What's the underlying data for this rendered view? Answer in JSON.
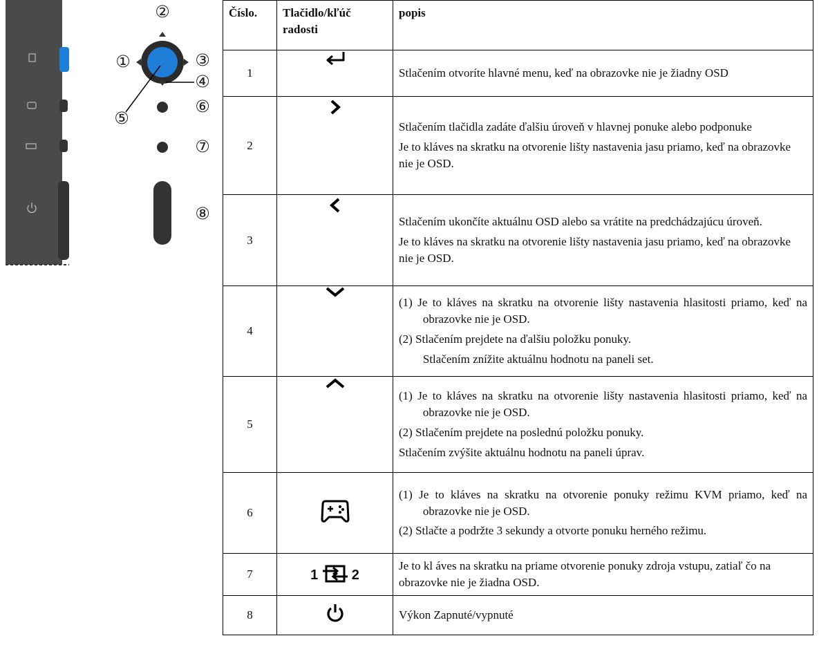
{
  "diagram": {
    "labels": [
      "①",
      "②",
      "③",
      "④",
      "⑤",
      "⑥",
      "⑦",
      "⑧"
    ]
  },
  "table": {
    "headers": [
      "Číslo.",
      "Tlačidlo/kľúč radosti",
      "popis"
    ],
    "rows": [
      {
        "number": "1",
        "description": [
          "Stlačením otvoríte hlavné menu, keď na obrazovke nie je žiadny OSD"
        ]
      },
      {
        "number": "2",
        "description": [
          "Stlačením tlačidla zadáte ďalšiu úroveň v hlavnej ponuke alebo podponuke",
          "Je to kláves na skratku na otvorenie lišty nastavenia jasu priamo, keď na obrazovke nie je OSD."
        ]
      },
      {
        "number": "3",
        "description": [
          "Stlačením ukončíte aktuálnu OSD alebo sa vrátite na predchádzajúcu úroveň.",
          "Je to kláves na skratku na otvorenie lišty nastavenia jasu priamo, keď na obrazovke nie je OSD."
        ]
      },
      {
        "number": "4",
        "description": [
          "(1) Je to kláves na skratku na otvorenie lišty nastavenia hlasitosti priamo, keď na obrazovke nie je OSD.",
          "(2) Stlačením prejdete na ďalšiu položku ponuky.",
          "Stlačením znížite aktuálnu hodnotu na paneli set."
        ]
      },
      {
        "number": "5",
        "description": [
          "(1) Je to kláves na skratku na otvorenie lišty nastavenia hlasitosti priamo, keď na obrazovke nie je OSD.",
          "(2) Stlačením prejdete na poslednú položku ponuky.",
          "Stlačením zvýšite aktuálnu hodnotu na paneli úprav."
        ]
      },
      {
        "number": "6",
        "description": [
          "(1) Je to kláves na skratku na otvorenie ponuky režimu KVM priamo, keď na obrazovke nie je OSD.",
          "(2) Stlačte a podržte 3 sekundy a otvorte ponuku herného režimu."
        ]
      },
      {
        "number": "7",
        "icon_text": [
          "1",
          "2"
        ],
        "description": [
          "Je to kl áves na skratku na priame otvorenie ponuky zdroja vstupu, zatiaľ čo na obrazovke nie je žiadna OSD."
        ]
      },
      {
        "number": "8",
        "description": [
          "Výkon Zapnuté/vypnuté"
        ]
      }
    ]
  }
}
